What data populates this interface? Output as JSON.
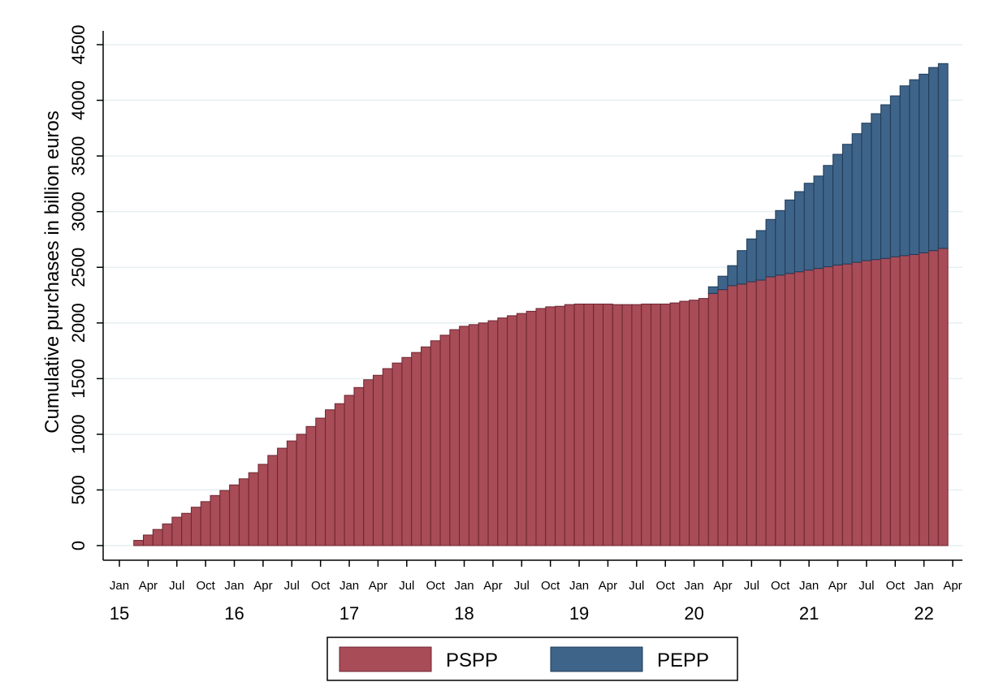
{
  "chart_data": {
    "type": "stacked-bar",
    "y_label": "Cumulative purchases in billion euros",
    "x": [
      "2015-03",
      "2015-04",
      "2015-05",
      "2015-06",
      "2015-07",
      "2015-08",
      "2015-09",
      "2015-10",
      "2015-11",
      "2015-12",
      "2016-01",
      "2016-02",
      "2016-03",
      "2016-04",
      "2016-05",
      "2016-06",
      "2016-07",
      "2016-08",
      "2016-09",
      "2016-10",
      "2016-11",
      "2016-12",
      "2017-01",
      "2017-02",
      "2017-03",
      "2017-04",
      "2017-05",
      "2017-06",
      "2017-07",
      "2017-08",
      "2017-09",
      "2017-10",
      "2017-11",
      "2017-12",
      "2018-01",
      "2018-02",
      "2018-03",
      "2018-04",
      "2018-05",
      "2018-06",
      "2018-07",
      "2018-08",
      "2018-09",
      "2018-10",
      "2018-11",
      "2018-12",
      "2019-01",
      "2019-02",
      "2019-03",
      "2019-04",
      "2019-05",
      "2019-06",
      "2019-07",
      "2019-08",
      "2019-09",
      "2019-10",
      "2019-11",
      "2019-12",
      "2020-01",
      "2020-02",
      "2020-03",
      "2020-04",
      "2020-05",
      "2020-06",
      "2020-07",
      "2020-08",
      "2020-09",
      "2020-10",
      "2020-11",
      "2020-12",
      "2021-01",
      "2021-02",
      "2021-03",
      "2021-04",
      "2021-05",
      "2021-06",
      "2021-07",
      "2021-08",
      "2021-09",
      "2021-10",
      "2021-11",
      "2021-12",
      "2022-01",
      "2022-02",
      "2022-03"
    ],
    "series": [
      {
        "name": "PSPP",
        "color": "#a84c58",
        "values": [
          47,
          95,
          145,
          195,
          255,
          290,
          345,
          395,
          450,
          495,
          545,
          600,
          655,
          730,
          810,
          875,
          940,
          1000,
          1070,
          1145,
          1220,
          1275,
          1350,
          1420,
          1490,
          1530,
          1590,
          1640,
          1690,
          1735,
          1785,
          1840,
          1890,
          1940,
          1970,
          1985,
          2000,
          2020,
          2045,
          2065,
          2085,
          2105,
          2130,
          2145,
          2150,
          2165,
          2170,
          2170,
          2170,
          2170,
          2165,
          2165,
          2165,
          2170,
          2170,
          2170,
          2180,
          2195,
          2205,
          2220,
          2265,
          2300,
          2335,
          2350,
          2370,
          2385,
          2415,
          2430,
          2445,
          2460,
          2475,
          2490,
          2505,
          2520,
          2530,
          2545,
          2560,
          2570,
          2580,
          2595,
          2605,
          2615,
          2630,
          2650,
          2670
        ]
      },
      {
        "name": "PEPP",
        "color": "#3f6489",
        "values": [
          null,
          null,
          null,
          null,
          null,
          null,
          null,
          null,
          null,
          null,
          null,
          null,
          null,
          null,
          null,
          null,
          null,
          null,
          null,
          null,
          null,
          null,
          null,
          null,
          null,
          null,
          null,
          null,
          null,
          null,
          null,
          null,
          null,
          null,
          null,
          null,
          null,
          null,
          null,
          null,
          null,
          null,
          null,
          null,
          null,
          null,
          null,
          null,
          null,
          null,
          null,
          null,
          null,
          null,
          null,
          null,
          null,
          null,
          null,
          null,
          60,
          120,
          180,
          300,
          385,
          445,
          515,
          580,
          660,
          720,
          780,
          830,
          910,
          995,
          1075,
          1155,
          1235,
          1310,
          1380,
          1445,
          1525,
          1570,
          1605,
          1645,
          1660
        ]
      }
    ],
    "xlim": [
      "2015-01",
      "2022-04"
    ],
    "xticks": [
      {
        "value": "2015-01",
        "label": "Jan"
      },
      {
        "value": "2015-04",
        "label": "Apr"
      },
      {
        "value": "2015-07",
        "label": "Jul"
      },
      {
        "value": "2015-10",
        "label": "Oct"
      },
      {
        "value": "2016-01",
        "label": "Jan"
      },
      {
        "value": "2016-04",
        "label": "Apr"
      },
      {
        "value": "2016-07",
        "label": "Jul"
      },
      {
        "value": "2016-10",
        "label": "Oct"
      },
      {
        "value": "2017-01",
        "label": "Jan"
      },
      {
        "value": "2017-04",
        "label": "Apr"
      },
      {
        "value": "2017-07",
        "label": "Jul"
      },
      {
        "value": "2017-10",
        "label": "Oct"
      },
      {
        "value": "2018-01",
        "label": "Jan"
      },
      {
        "value": "2018-04",
        "label": "Apr"
      },
      {
        "value": "2018-07",
        "label": "Jul"
      },
      {
        "value": "2018-10",
        "label": "Oct"
      },
      {
        "value": "2019-01",
        "label": "Jan"
      },
      {
        "value": "2019-04",
        "label": "Apr"
      },
      {
        "value": "2019-07",
        "label": "Jul"
      },
      {
        "value": "2019-10",
        "label": "Oct"
      },
      {
        "value": "2020-01",
        "label": "Jan"
      },
      {
        "value": "2020-04",
        "label": "Apr"
      },
      {
        "value": "2020-07",
        "label": "Jul"
      },
      {
        "value": "2020-10",
        "label": "Oct"
      },
      {
        "value": "2021-01",
        "label": "Jan"
      },
      {
        "value": "2021-04",
        "label": "Apr"
      },
      {
        "value": "2021-07",
        "label": "Jul"
      },
      {
        "value": "2021-10",
        "label": "Oct"
      },
      {
        "value": "2022-01",
        "label": "Jan"
      },
      {
        "value": "2022-04",
        "label": "Apr"
      }
    ],
    "year_labels": [
      {
        "value": "2015-01",
        "label": "15"
      },
      {
        "value": "2016-01",
        "label": "16"
      },
      {
        "value": "2017-01",
        "label": "17"
      },
      {
        "value": "2018-01",
        "label": "18"
      },
      {
        "value": "2019-01",
        "label": "19"
      },
      {
        "value": "2020-01",
        "label": "20"
      },
      {
        "value": "2021-01",
        "label": "21"
      },
      {
        "value": "2022-01",
        "label": "22"
      }
    ],
    "ylim": [
      0,
      4500
    ],
    "yticks": [
      0,
      500,
      1000,
      1500,
      2000,
      2500,
      3000,
      3500,
      4000,
      4500
    ],
    "grid": true,
    "legend": "bottom"
  }
}
